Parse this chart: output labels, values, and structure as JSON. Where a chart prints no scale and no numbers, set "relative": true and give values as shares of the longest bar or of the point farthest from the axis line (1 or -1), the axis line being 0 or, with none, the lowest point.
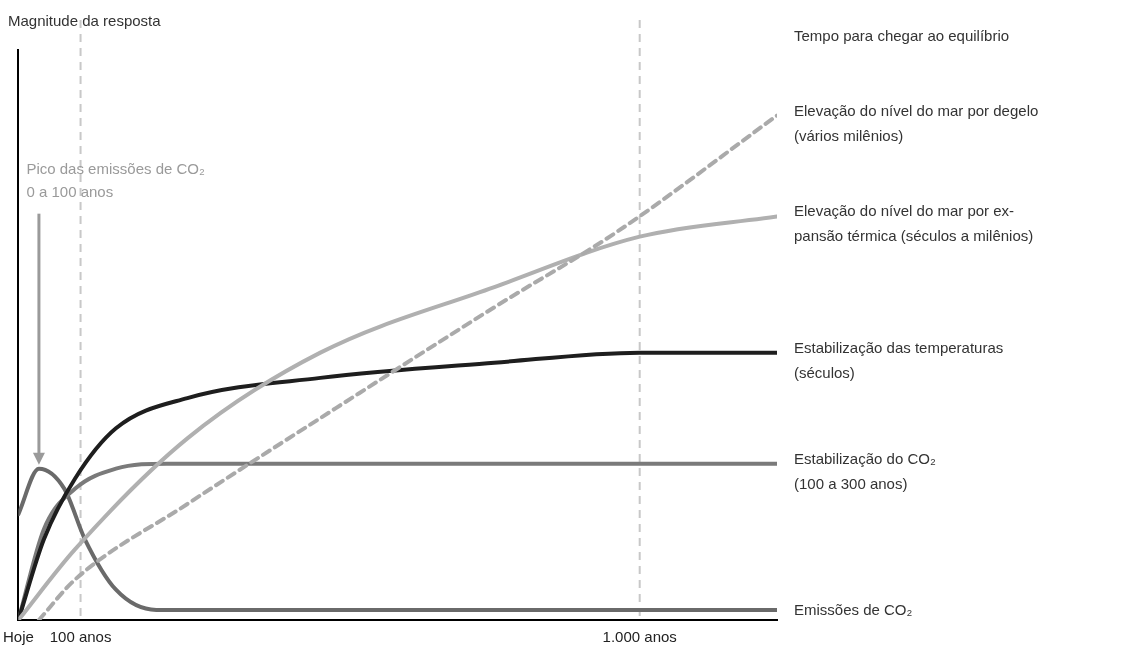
{
  "chart_data": {
    "type": "line",
    "relative": true,
    "legend_title": "Tempo para chegar ao equilíbrio",
    "legend": false,
    "grid": false,
    "marker": "none",
    "xlim": [
      0,
      1221
    ],
    "xticks": [
      {
        "value": 0,
        "label": "Hoje"
      },
      {
        "value": 100,
        "label": "100 anos"
      },
      {
        "value": 1000,
        "label": "1.000 anos"
      }
    ],
    "ref_lines": [
      {
        "axis": "x",
        "value": 100,
        "color": "#c8c8c8",
        "line_style": "dashed"
      },
      {
        "axis": "x",
        "value": 1000,
        "color": "#c8c8c8",
        "line_style": "dashed"
      }
    ],
    "annotations": [
      "Magnitude da resposta",
      "Pico das emissões de CO₂\n0 a 100 anos"
    ],
    "series": [
      {
        "name": "Elevação do nível do mar por degelo\n(vários milênios)",
        "color": "#aaaaaa",
        "line_style": "dashed",
        "x": [
          33,
          91,
          272,
          511,
          766,
          964,
          1221
        ],
        "values": [
          0,
          0.08,
          0.23,
          0.42,
          0.62,
          0.77,
          1
        ]
      },
      {
        "name": "Elevação do nível do mar por ex-\npansão térmica (séculos a milênios)",
        "color": "#b0b0b0",
        "x": [
          0,
          91,
          272,
          486,
          766,
          1000,
          1221
        ],
        "values": [
          0,
          0.14,
          0.36,
          0.53,
          0.66,
          0.76,
          0.8
        ]
      },
      {
        "name": "Estabilização das temperaturas\n(séculos)",
        "color": "#1e1e1e",
        "x": [
          0,
          41,
          91,
          157,
          272,
          486,
          766,
          1000,
          1221
        ],
        "values": [
          0,
          0.16,
          0.28,
          0.38,
          0.44,
          0.48,
          0.51,
          0.53,
          0.53
        ]
      },
      {
        "name": "Estabilização do CO₂\n(100 a 300 anos)",
        "color": "#7a7a7a",
        "x": [
          0,
          41,
          91,
          157,
          239,
          1221
        ],
        "values": [
          0,
          0.18,
          0.26,
          0.3,
          0.31,
          0.31
        ]
      },
      {
        "name": "Emissões de CO₂",
        "color": "#6a6a6a",
        "x": [
          0,
          33,
          74,
          107,
          157,
          222,
          272,
          1221
        ],
        "values": [
          0.21,
          0.3,
          0.26,
          0.16,
          0.06,
          0.02,
          0.02,
          0.02
        ]
      }
    ]
  }
}
